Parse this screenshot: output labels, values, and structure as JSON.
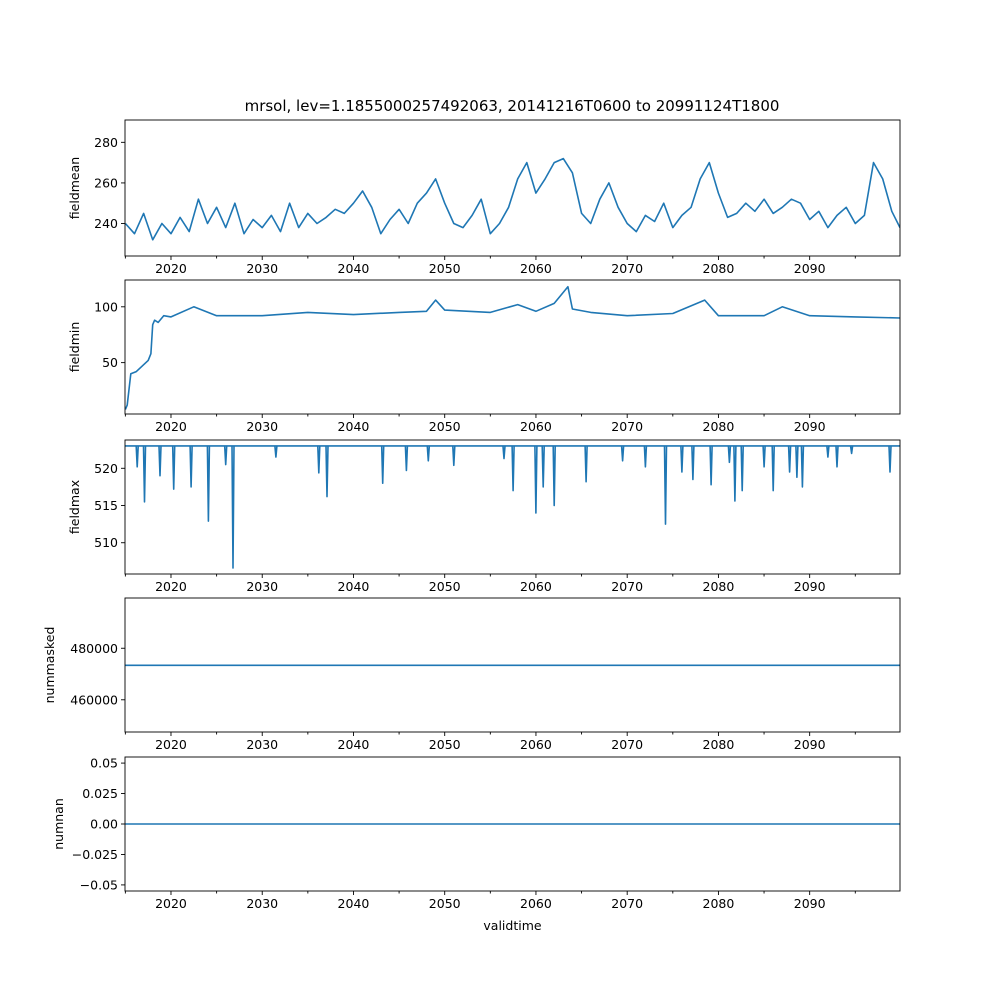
{
  "chart_data": [
    {
      "type": "line",
      "title": "mrsol, lev=1.1855000257492063, 20141216T0600 to 20991124T1800",
      "xlabel": "",
      "ylabel": "fieldmean",
      "xlim": [
        2014.96,
        2099.9
      ],
      "ylim": [
        224,
        291
      ],
      "xticks": [
        2020,
        2030,
        2040,
        2050,
        2060,
        2070,
        2080,
        2090
      ],
      "xtick_labels": [
        "2020",
        "2030",
        "2040",
        "2050",
        "2060",
        "2070",
        "2080",
        "2090"
      ],
      "yticks": [
        240,
        260,
        280
      ],
      "ytick_labels": [
        "240",
        "260",
        "280"
      ],
      "series": [
        {
          "name": "fieldmean",
          "x": [
            2015,
            2016,
            2017,
            2018,
            2019,
            2020,
            2021,
            2022,
            2023,
            2024,
            2025,
            2026,
            2027,
            2028,
            2029,
            2030,
            2031,
            2032,
            2033,
            2034,
            2035,
            2036,
            2037,
            2038,
            2039,
            2040,
            2041,
            2042,
            2043,
            2044,
            2045,
            2046,
            2047,
            2048,
            2049,
            2050,
            2051,
            2052,
            2053,
            2054,
            2055,
            2056,
            2057,
            2058,
            2059,
            2060,
            2061,
            2062,
            2063,
            2064,
            2065,
            2066,
            2067,
            2068,
            2069,
            2070,
            2071,
            2072,
            2073,
            2074,
            2075,
            2076,
            2077,
            2078,
            2079,
            2080,
            2081,
            2082,
            2083,
            2084,
            2085,
            2086,
            2087,
            2088,
            2089,
            2090,
            2091,
            2092,
            2093,
            2094,
            2095,
            2096,
            2097,
            2098,
            2099,
            2099.9
          ],
          "values": [
            240,
            235,
            245,
            232,
            240,
            235,
            243,
            236,
            252,
            240,
            248,
            238,
            250,
            235,
            242,
            238,
            244,
            236,
            250,
            238,
            245,
            240,
            243,
            247,
            245,
            250,
            256,
            248,
            235,
            242,
            247,
            240,
            250,
            255,
            262,
            250,
            240,
            238,
            244,
            252,
            235,
            240,
            248,
            262,
            270,
            255,
            262,
            270,
            272,
            265,
            245,
            240,
            252,
            260,
            248,
            240,
            236,
            244,
            241,
            250,
            238,
            244,
            248,
            262,
            270,
            255,
            243,
            245,
            250,
            246,
            252,
            245,
            248,
            252,
            250,
            242,
            246,
            238,
            244,
            248,
            240,
            244,
            270,
            262,
            246,
            238
          ]
        }
      ]
    },
    {
      "type": "line",
      "xlabel": "",
      "ylabel": "fieldmin",
      "xlim": [
        2014.96,
        2099.9
      ],
      "ylim": [
        4,
        124
      ],
      "xticks": [
        2020,
        2030,
        2040,
        2050,
        2060,
        2070,
        2080,
        2090
      ],
      "xtick_labels": [
        "2020",
        "2030",
        "2040",
        "2050",
        "2060",
        "2070",
        "2080",
        "2090"
      ],
      "yticks": [
        50,
        100
      ],
      "ytick_labels": [
        "50",
        "100"
      ],
      "series": [
        {
          "name": "fieldmin",
          "x": [
            2015,
            2015.2,
            2015.6,
            2016.2,
            2017.5,
            2017.8,
            2018.0,
            2018.2,
            2018.6,
            2019.2,
            2020,
            2022.5,
            2025,
            2030,
            2035,
            2040,
            2045,
            2048,
            2049,
            2050,
            2055,
            2058,
            2060,
            2062,
            2063.5,
            2064,
            2066,
            2070,
            2075,
            2078.5,
            2080,
            2085,
            2087,
            2090,
            2095,
            2099.9
          ],
          "values": [
            8,
            12,
            40,
            42,
            52,
            58,
            84,
            88,
            86,
            92,
            91,
            100,
            92,
            92,
            95,
            93,
            95,
            96,
            106,
            97,
            95,
            102,
            96,
            103,
            118,
            98,
            95,
            92,
            94,
            106,
            92,
            92,
            100,
            92,
            91,
            90
          ]
        }
      ]
    },
    {
      "type": "line",
      "xlabel": "",
      "ylabel": "fieldmax",
      "xlim": [
        2014.96,
        2099.9
      ],
      "ylim": [
        505.8,
        523.8
      ],
      "xticks": [
        2020,
        2030,
        2040,
        2050,
        2060,
        2070,
        2080,
        2090
      ],
      "xtick_labels": [
        "2020",
        "2030",
        "2040",
        "2050",
        "2060",
        "2070",
        "2080",
        "2090"
      ],
      "yticks": [
        510,
        515,
        520
      ],
      "ytick_labels": [
        "510",
        "515",
        "520"
      ],
      "baseline": 523.0,
      "dips": [
        {
          "x": 2016.3,
          "value": 520.2
        },
        {
          "x": 2017.1,
          "value": 515.5
        },
        {
          "x": 2018.8,
          "value": 519.0
        },
        {
          "x": 2020.3,
          "value": 517.2
        },
        {
          "x": 2022.2,
          "value": 517.5
        },
        {
          "x": 2024.1,
          "value": 512.9
        },
        {
          "x": 2026.0,
          "value": 520.5
        },
        {
          "x": 2026.8,
          "value": 506.6
        },
        {
          "x": 2031.5,
          "value": 521.5
        },
        {
          "x": 2036.2,
          "value": 519.4
        },
        {
          "x": 2037.1,
          "value": 516.2
        },
        {
          "x": 2043.2,
          "value": 518.0
        },
        {
          "x": 2045.8,
          "value": 519.7
        },
        {
          "x": 2048.2,
          "value": 521.0
        },
        {
          "x": 2051.0,
          "value": 520.4
        },
        {
          "x": 2056.5,
          "value": 521.3
        },
        {
          "x": 2057.5,
          "value": 517.0
        },
        {
          "x": 2060.0,
          "value": 514.0
        },
        {
          "x": 2060.8,
          "value": 517.5
        },
        {
          "x": 2062.0,
          "value": 515.0
        },
        {
          "x": 2065.5,
          "value": 518.2
        },
        {
          "x": 2069.5,
          "value": 521.0
        },
        {
          "x": 2072.0,
          "value": 520.2
        },
        {
          "x": 2074.2,
          "value": 512.5
        },
        {
          "x": 2076.0,
          "value": 519.5
        },
        {
          "x": 2077.2,
          "value": 518.5
        },
        {
          "x": 2079.2,
          "value": 517.8
        },
        {
          "x": 2081.2,
          "value": 520.8
        },
        {
          "x": 2081.8,
          "value": 515.6
        },
        {
          "x": 2082.6,
          "value": 517.0
        },
        {
          "x": 2085.0,
          "value": 520.2
        },
        {
          "x": 2086.0,
          "value": 517.0
        },
        {
          "x": 2087.8,
          "value": 519.5
        },
        {
          "x": 2088.6,
          "value": 518.8
        },
        {
          "x": 2089.2,
          "value": 517.5
        },
        {
          "x": 2092.0,
          "value": 521.5
        },
        {
          "x": 2093.0,
          "value": 520.2
        },
        {
          "x": 2094.6,
          "value": 522.0
        },
        {
          "x": 2098.8,
          "value": 519.5
        }
      ]
    },
    {
      "type": "line",
      "xlabel": "",
      "ylabel": "nummasked",
      "xlim": [
        2014.96,
        2099.9
      ],
      "ylim": [
        447500,
        499500
      ],
      "xticks": [
        2020,
        2030,
        2040,
        2050,
        2060,
        2070,
        2080,
        2090
      ],
      "xtick_labels": [
        "2020",
        "2030",
        "2040",
        "2050",
        "2060",
        "2070",
        "2080",
        "2090"
      ],
      "yticks": [
        460000,
        480000
      ],
      "ytick_labels": [
        "460000",
        "480000"
      ],
      "series": [
        {
          "name": "nummasked",
          "x": [
            2014.96,
            2099.9
          ],
          "values": [
            473400,
            473400
          ]
        }
      ]
    },
    {
      "type": "line",
      "xlabel": "validtime",
      "ylabel": "numnan",
      "xlim": [
        2014.96,
        2099.9
      ],
      "ylim": [
        -0.055,
        0.055
      ],
      "xticks": [
        2020,
        2030,
        2040,
        2050,
        2060,
        2070,
        2080,
        2090
      ],
      "xtick_labels": [
        "2020",
        "2030",
        "2040",
        "2050",
        "2060",
        "2070",
        "2080",
        "2090"
      ],
      "yticks": [
        -0.05,
        -0.025,
        0,
        0.025,
        0.05
      ],
      "ytick_labels": [
        "−0.05",
        "−0.025",
        "0.00",
        "0.025",
        "0.05"
      ],
      "series": [
        {
          "name": "numnan",
          "x": [
            2014.96,
            2099.9
          ],
          "values": [
            0,
            0
          ]
        }
      ]
    }
  ]
}
